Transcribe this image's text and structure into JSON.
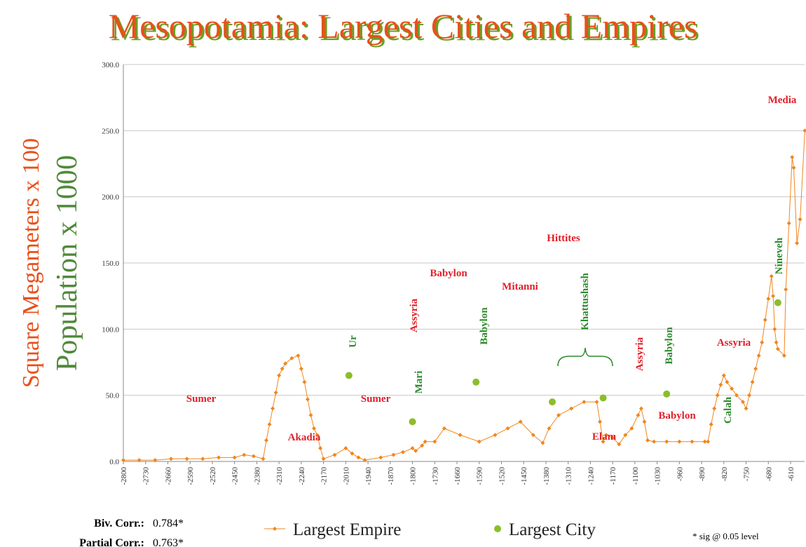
{
  "chart_data": {
    "type": "line",
    "title": "Mesopotamia:  Largest Cities and Empires",
    "ylabels": [
      {
        "text": "Square Megameters x 100",
        "color": "#e8501a"
      },
      {
        "text": "Population x 1000",
        "color": "#4f8a3a"
      }
    ],
    "ylim": [
      0,
      300
    ],
    "yticks": [
      {
        "value": 0,
        "label": "0.0"
      },
      {
        "value": 50,
        "label": "50.0"
      },
      {
        "value": 100,
        "label": "100.0"
      },
      {
        "value": 150,
        "label": "150.0"
      },
      {
        "value": 200,
        "label": "200.0"
      },
      {
        "value": 250,
        "label": "250.0"
      },
      {
        "value": 300,
        "label": "300.0"
      }
    ],
    "xlim": [
      -2800,
      -565
    ],
    "xticks": [
      -2800,
      -2730,
      -2660,
      -2590,
      -2520,
      -2450,
      -2380,
      -2310,
      -2240,
      -2170,
      -2010,
      -1940,
      -1870,
      -1800,
      -1730,
      -1660,
      -1590,
      -1520,
      -1450,
      -1380,
      -1310,
      -1240,
      -1170,
      -1100,
      -1030,
      -960,
      -890,
      -820,
      -750,
      -680,
      -610
    ],
    "grid": true,
    "series": [
      {
        "name": "Largest Empire",
        "color": "#f0861e",
        "marker": "diamond",
        "line": true,
        "x": [
          -2800,
          -2750,
          -2700,
          -2650,
          -2600,
          -2550,
          -2500,
          -2450,
          -2420,
          -2390,
          -2360,
          -2350,
          -2340,
          -2330,
          -2320,
          -2310,
          -2300,
          -2290,
          -2270,
          -2250,
          -2240,
          -2230,
          -2220,
          -2210,
          -2200,
          -2190,
          -2180,
          -2170,
          -2090,
          -2010,
          -1990,
          -1970,
          -1950,
          -1900,
          -1860,
          -1830,
          -1800,
          -1790,
          -1770,
          -1760,
          -1730,
          -1700,
          -1650,
          -1590,
          -1540,
          -1500,
          -1460,
          -1420,
          -1390,
          -1370,
          -1340,
          -1300,
          -1260,
          -1220,
          -1210,
          -1200,
          -1190,
          -1170,
          -1150,
          -1130,
          -1110,
          -1090,
          -1080,
          -1070,
          -1060,
          -1040,
          -1000,
          -960,
          -920,
          -880,
          -870,
          -860,
          -850,
          -840,
          -830,
          -820,
          -810,
          -795,
          -780,
          -760,
          -750,
          -740,
          -730,
          -720,
          -710,
          -700,
          -690,
          -680,
          -670,
          -665,
          -660,
          -655,
          -650,
          -630,
          -625,
          -615,
          -605,
          -600,
          -590,
          -580,
          -565
        ],
        "values": [
          1,
          1,
          1,
          2,
          2,
          2,
          3,
          3,
          5,
          4,
          2,
          16,
          28,
          40,
          52,
          65,
          70,
          74,
          78,
          80,
          70,
          60,
          47,
          35,
          25,
          20,
          10,
          2,
          5,
          10,
          6,
          3,
          1,
          3,
          5,
          7,
          10,
          8,
          12,
          15,
          15,
          25,
          20,
          15,
          20,
          25,
          30,
          20,
          14,
          25,
          35,
          40,
          45,
          45,
          30,
          15,
          20,
          18,
          13,
          20,
          25,
          35,
          40,
          30,
          16,
          15,
          15,
          15,
          15,
          15,
          15,
          28,
          40,
          50,
          58,
          65,
          60,
          55,
          50,
          45,
          40,
          50,
          60,
          70,
          80,
          90,
          107,
          123,
          140,
          125,
          100,
          90,
          85,
          80,
          130,
          180,
          230,
          222,
          165,
          183,
          250
        ]
      },
      {
        "name": "Largest City",
        "color": "#8cbd2c",
        "marker": "circle",
        "line": false,
        "x": [
          -2000,
          -1800,
          -1600,
          -1360,
          -1200,
          -1000,
          -650
        ],
        "values": [
          65,
          30,
          60,
          45,
          48,
          51,
          120
        ]
      }
    ],
    "annotations": [
      {
        "text": "Sumer",
        "color": "#e0202a",
        "rotated": false
      },
      {
        "text": "Akadia",
        "color": "#e0202a",
        "rotated": false
      },
      {
        "text": "Sumer",
        "color": "#e0202a",
        "rotated": false
      },
      {
        "text": "Assyria",
        "color": "#e0202a",
        "rotated": true
      },
      {
        "text": "Babylon",
        "color": "#e0202a",
        "rotated": false
      },
      {
        "text": "Mitanni",
        "color": "#e0202a",
        "rotated": false
      },
      {
        "text": "Hittites",
        "color": "#e0202a",
        "rotated": false
      },
      {
        "text": "Elam",
        "color": "#e0202a",
        "rotated": false
      },
      {
        "text": "Assyria",
        "color": "#e0202a",
        "rotated": true
      },
      {
        "text": "Babylon",
        "color": "#e0202a",
        "rotated": false
      },
      {
        "text": "Assyria",
        "color": "#e0202a",
        "rotated": false
      },
      {
        "text": "Media",
        "color": "#e0202a",
        "rotated": false
      },
      {
        "text": "Ur",
        "color": "#2e8b2e",
        "rotated": true
      },
      {
        "text": "Mari",
        "color": "#2e8b2e",
        "rotated": true
      },
      {
        "text": "Babylon",
        "color": "#2e8b2e",
        "rotated": true
      },
      {
        "text": "Khattushash",
        "color": "#2e8b2e",
        "rotated": true
      },
      {
        "text": "Babylon",
        "color": "#2e8b2e",
        "rotated": true
      },
      {
        "text": "Calah",
        "color": "#2e8b2e",
        "rotated": true
      },
      {
        "text": "Nineveh",
        "color": "#2e8b2e",
        "rotated": true
      }
    ],
    "stats": [
      {
        "label": "Biv. Corr.:",
        "value": "0.784*"
      },
      {
        "label": "Partial Corr.:",
        "value": "0.763*"
      }
    ],
    "note": "* sig @ 0.05 level"
  }
}
